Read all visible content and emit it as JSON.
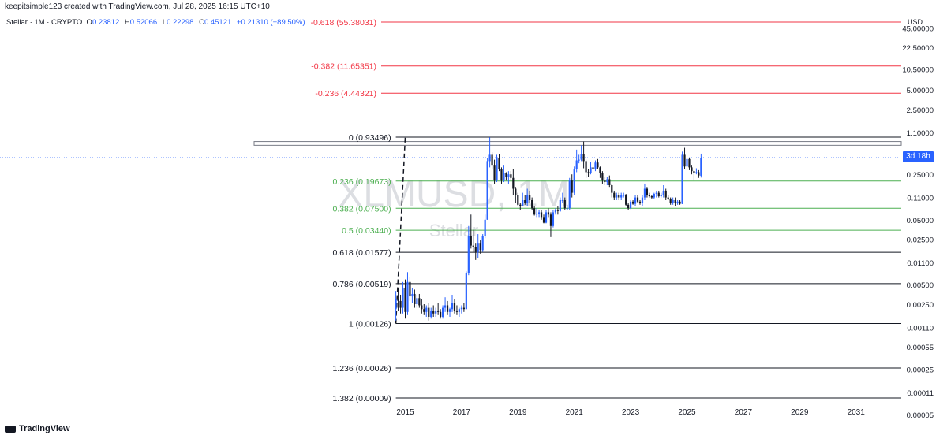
{
  "header": {
    "caption": "keepitsimple123 created with TradingView.com, Jul 28, 2025 16:15 UTC+10",
    "symbol": "Stellar · 1M · CRYPTO",
    "o_label": "O",
    "o_value": "0.23812",
    "h_label": "H",
    "h_value": "0.52066",
    "l_label": "L",
    "l_value": "0.22298",
    "c_label": "C",
    "c_value": "0.45121",
    "change": "+0.21310 (+89.50%)"
  },
  "price_axis": {
    "currency": "USD",
    "countdown": "3d 18h",
    "ticks": [
      "45.00000",
      "22.50000",
      "10.50000",
      "5.00000",
      "2.50000",
      "1.10000",
      "0.50000",
      "0.25000",
      "0.11000",
      "0.05000",
      "0.02500",
      "0.01100",
      "0.00500",
      "0.00250",
      "0.00110",
      "0.00055",
      "0.00025",
      "0.00011",
      "0.00005"
    ]
  },
  "time_axis": {
    "ticks": [
      "2015",
      "2017",
      "2019",
      "2021",
      "2023",
      "2025",
      "2027",
      "2029",
      "2031"
    ]
  },
  "watermark": {
    "symbol": "XLMUSD, 1M",
    "name": "Stellar"
  },
  "branding": {
    "logo_text": "TradingView"
  },
  "colors": {
    "up": "#2962ff",
    "down": "#131722",
    "fib_red": "#f23645",
    "fib_green": "#4caf50",
    "fib_black": "#131722"
  },
  "chart_data": {
    "type": "candlestick",
    "symbol": "XLMUSD",
    "interval": "1M",
    "y_scale": "log",
    "ylim": [
      4e-05,
      80
    ],
    "xlim": [
      "2014-05",
      "2032-01"
    ],
    "fib_levels": [
      {
        "label": "-0.618 (55.38031)",
        "ratio": -0.618,
        "price": 55.38031,
        "color": "red"
      },
      {
        "label": "-0.382 (11.65351)",
        "ratio": -0.382,
        "price": 11.65351,
        "color": "red"
      },
      {
        "label": "-0.236 (4.44321)",
        "ratio": -0.236,
        "price": 4.44321,
        "color": "red"
      },
      {
        "label": "0 (0.93496)",
        "ratio": 0,
        "price": 0.93496,
        "color": "black"
      },
      {
        "label": "0.236 (0.19673)",
        "ratio": 0.236,
        "price": 0.19673,
        "color": "green"
      },
      {
        "label": "0.382 (0.07500)",
        "ratio": 0.382,
        "price": 0.075,
        "color": "green"
      },
      {
        "label": "0.5 (0.03440)",
        "ratio": 0.5,
        "price": 0.0344,
        "color": "green"
      },
      {
        "label": "0.618 (0.01577)",
        "ratio": 0.618,
        "price": 0.01577,
        "color": "black"
      },
      {
        "label": "0.786 (0.00519)",
        "ratio": 0.786,
        "price": 0.00519,
        "color": "black"
      },
      {
        "label": "1 (0.00126)",
        "ratio": 1,
        "price": 0.00126,
        "color": "black"
      },
      {
        "label": "1.236 (0.00026)",
        "ratio": 1.236,
        "price": 0.00026,
        "color": "black"
      },
      {
        "label": "1.382 (0.00009)",
        "ratio": 1.382,
        "price": 9e-05,
        "color": "black"
      }
    ],
    "fib_start_date": "2014-09",
    "fib_anchor": {
      "from": {
        "date": "2014-09",
        "price": 0.00126
      },
      "to": {
        "date": "2015-01",
        "price": 0.93496
      }
    },
    "resistance_band": [
      0.7,
      0.8
    ],
    "current_price_line": 0.45121,
    "candles": [
      [
        "2014-09",
        0.0021,
        0.004,
        0.0014,
        0.003
      ],
      [
        "2014-10",
        0.003,
        0.0045,
        0.002,
        0.0028
      ],
      [
        "2014-11",
        0.0028,
        0.0035,
        0.0018,
        0.0022
      ],
      [
        "2014-12",
        0.0022,
        0.0055,
        0.0018,
        0.0045
      ],
      [
        "2015-01",
        0.0045,
        0.006,
        0.0015,
        0.0019
      ],
      [
        "2015-02",
        0.0019,
        0.0078,
        0.0017,
        0.0055
      ],
      [
        "2015-03",
        0.0055,
        0.0065,
        0.0028,
        0.0033
      ],
      [
        "2015-04",
        0.0033,
        0.0045,
        0.0026,
        0.0036
      ],
      [
        "2015-05",
        0.0036,
        0.0042,
        0.0022,
        0.0025
      ],
      [
        "2015-06",
        0.0025,
        0.0035,
        0.0022,
        0.0031
      ],
      [
        "2015-07",
        0.0031,
        0.0036,
        0.0022,
        0.0024
      ],
      [
        "2015-08",
        0.0024,
        0.003,
        0.0018,
        0.0021
      ],
      [
        "2015-09",
        0.0021,
        0.0025,
        0.0017,
        0.0019
      ],
      [
        "2015-10",
        0.0019,
        0.0024,
        0.0016,
        0.0022
      ],
      [
        "2015-11",
        0.0022,
        0.0026,
        0.0014,
        0.0016
      ],
      [
        "2015-12",
        0.0016,
        0.0022,
        0.0015,
        0.002
      ],
      [
        "2016-01",
        0.002,
        0.0024,
        0.0016,
        0.0018
      ],
      [
        "2016-02",
        0.0018,
        0.0022,
        0.0016,
        0.002
      ],
      [
        "2016-03",
        0.002,
        0.0026,
        0.0017,
        0.0019
      ],
      [
        "2016-04",
        0.0019,
        0.0021,
        0.0015,
        0.0016
      ],
      [
        "2016-05",
        0.0016,
        0.0024,
        0.0015,
        0.0022
      ],
      [
        "2016-06",
        0.0022,
        0.0032,
        0.0019,
        0.0024
      ],
      [
        "2016-07",
        0.0024,
        0.0028,
        0.0017,
        0.0019
      ],
      [
        "2016-08",
        0.0019,
        0.0022,
        0.0016,
        0.0021
      ],
      [
        "2016-09",
        0.0021,
        0.0035,
        0.0019,
        0.0026
      ],
      [
        "2016-10",
        0.0026,
        0.003,
        0.0018,
        0.002
      ],
      [
        "2016-11",
        0.002,
        0.0024,
        0.0017,
        0.0019
      ],
      [
        "2016-12",
        0.0019,
        0.0022,
        0.0016,
        0.0021
      ],
      [
        "2017-01",
        0.0021,
        0.0024,
        0.0018,
        0.0022
      ],
      [
        "2017-02",
        0.0022,
        0.0026,
        0.0019,
        0.0021
      ],
      [
        "2017-03",
        0.0021,
        0.008,
        0.0021,
        0.0075
      ],
      [
        "2017-04",
        0.0075,
        0.04,
        0.007,
        0.028
      ],
      [
        "2017-05",
        0.028,
        0.06,
        0.018,
        0.02
      ],
      [
        "2017-06",
        0.02,
        0.035,
        0.016,
        0.019
      ],
      [
        "2017-07",
        0.019,
        0.022,
        0.012,
        0.016
      ],
      [
        "2017-08",
        0.016,
        0.03,
        0.013,
        0.022
      ],
      [
        "2017-09",
        0.022,
        0.024,
        0.015,
        0.017
      ],
      [
        "2017-10",
        0.017,
        0.03,
        0.016,
        0.028
      ],
      [
        "2017-11",
        0.028,
        0.06,
        0.026,
        0.05
      ],
      [
        "2017-12",
        0.05,
        0.45,
        0.05,
        0.4
      ],
      [
        "2018-01",
        0.4,
        0.93,
        0.32,
        0.5
      ],
      [
        "2018-02",
        0.5,
        0.55,
        0.3,
        0.35
      ],
      [
        "2018-03",
        0.35,
        0.42,
        0.18,
        0.2
      ],
      [
        "2018-04",
        0.2,
        0.5,
        0.19,
        0.45
      ],
      [
        "2018-05",
        0.45,
        0.52,
        0.28,
        0.3
      ],
      [
        "2018-06",
        0.3,
        0.32,
        0.18,
        0.2
      ],
      [
        "2018-07",
        0.2,
        0.35,
        0.19,
        0.26
      ],
      [
        "2018-08",
        0.26,
        0.27,
        0.2,
        0.23
      ],
      [
        "2018-09",
        0.23,
        0.28,
        0.18,
        0.25
      ],
      [
        "2018-10",
        0.25,
        0.28,
        0.2,
        0.22
      ],
      [
        "2018-11",
        0.22,
        0.3,
        0.12,
        0.15
      ],
      [
        "2018-12",
        0.15,
        0.16,
        0.09,
        0.12
      ],
      [
        "2019-01",
        0.12,
        0.13,
        0.08,
        0.085
      ],
      [
        "2019-02",
        0.085,
        0.09,
        0.07,
        0.082
      ],
      [
        "2019-03",
        0.082,
        0.13,
        0.08,
        0.1
      ],
      [
        "2019-04",
        0.1,
        0.12,
        0.085,
        0.09
      ],
      [
        "2019-05",
        0.09,
        0.15,
        0.08,
        0.12
      ],
      [
        "2019-06",
        0.12,
        0.14,
        0.09,
        0.1
      ],
      [
        "2019-07",
        0.1,
        0.11,
        0.07,
        0.075
      ],
      [
        "2019-08",
        0.075,
        0.08,
        0.058,
        0.06
      ],
      [
        "2019-09",
        0.06,
        0.075,
        0.055,
        0.062
      ],
      [
        "2019-10",
        0.062,
        0.07,
        0.055,
        0.065
      ],
      [
        "2019-11",
        0.065,
        0.07,
        0.05,
        0.055
      ],
      [
        "2019-12",
        0.055,
        0.06,
        0.044,
        0.045
      ],
      [
        "2020-01",
        0.045,
        0.07,
        0.044,
        0.065
      ],
      [
        "2020-02",
        0.065,
        0.075,
        0.055,
        0.06
      ],
      [
        "2020-03",
        0.06,
        0.065,
        0.027,
        0.04
      ],
      [
        "2020-04",
        0.04,
        0.07,
        0.038,
        0.065
      ],
      [
        "2020-05",
        0.065,
        0.075,
        0.06,
        0.07
      ],
      [
        "2020-06",
        0.07,
        0.08,
        0.06,
        0.068
      ],
      [
        "2020-07",
        0.068,
        0.11,
        0.066,
        0.1
      ],
      [
        "2020-08",
        0.1,
        0.13,
        0.09,
        0.1
      ],
      [
        "2020-09",
        0.1,
        0.11,
        0.07,
        0.075
      ],
      [
        "2020-10",
        0.075,
        0.085,
        0.07,
        0.075
      ],
      [
        "2020-11",
        0.075,
        0.22,
        0.07,
        0.2
      ],
      [
        "2020-12",
        0.2,
        0.25,
        0.11,
        0.13
      ],
      [
        "2021-01",
        0.13,
        0.33,
        0.12,
        0.3
      ],
      [
        "2021-02",
        0.3,
        0.6,
        0.27,
        0.41
      ],
      [
        "2021-03",
        0.41,
        0.5,
        0.37,
        0.42
      ],
      [
        "2021-04",
        0.42,
        0.7,
        0.4,
        0.51
      ],
      [
        "2021-05",
        0.51,
        0.8,
        0.31,
        0.4
      ],
      [
        "2021-06",
        0.4,
        0.42,
        0.22,
        0.27
      ],
      [
        "2021-07",
        0.27,
        0.3,
        0.23,
        0.26
      ],
      [
        "2021-08",
        0.26,
        0.39,
        0.25,
        0.32
      ],
      [
        "2021-09",
        0.32,
        0.42,
        0.26,
        0.3
      ],
      [
        "2021-10",
        0.3,
        0.41,
        0.28,
        0.38
      ],
      [
        "2021-11",
        0.38,
        0.43,
        0.3,
        0.32
      ],
      [
        "2021-12",
        0.32,
        0.33,
        0.22,
        0.26
      ],
      [
        "2022-01",
        0.26,
        0.28,
        0.18,
        0.2
      ],
      [
        "2022-02",
        0.2,
        0.23,
        0.17,
        0.19
      ],
      [
        "2022-03",
        0.19,
        0.23,
        0.17,
        0.21
      ],
      [
        "2022-04",
        0.21,
        0.24,
        0.16,
        0.17
      ],
      [
        "2022-05",
        0.17,
        0.18,
        0.11,
        0.13
      ],
      [
        "2022-06",
        0.13,
        0.14,
        0.1,
        0.11
      ],
      [
        "2022-07",
        0.11,
        0.13,
        0.1,
        0.12
      ],
      [
        "2022-08",
        0.12,
        0.13,
        0.1,
        0.11
      ],
      [
        "2022-09",
        0.11,
        0.13,
        0.1,
        0.12
      ],
      [
        "2022-10",
        0.12,
        0.13,
        0.11,
        0.12
      ],
      [
        "2022-11",
        0.12,
        0.125,
        0.08,
        0.085
      ],
      [
        "2022-12",
        0.085,
        0.09,
        0.07,
        0.075
      ],
      [
        "2023-01",
        0.075,
        0.1,
        0.073,
        0.095
      ],
      [
        "2023-02",
        0.095,
        0.1,
        0.085,
        0.088
      ],
      [
        "2023-03",
        0.088,
        0.12,
        0.08,
        0.11
      ],
      [
        "2023-04",
        0.11,
        0.12,
        0.09,
        0.095
      ],
      [
        "2023-05",
        0.095,
        0.1,
        0.085,
        0.09
      ],
      [
        "2023-06",
        0.09,
        0.12,
        0.08,
        0.11
      ],
      [
        "2023-07",
        0.11,
        0.18,
        0.1,
        0.15
      ],
      [
        "2023-08",
        0.15,
        0.16,
        0.11,
        0.12
      ],
      [
        "2023-09",
        0.12,
        0.13,
        0.11,
        0.115
      ],
      [
        "2023-10",
        0.115,
        0.12,
        0.105,
        0.11
      ],
      [
        "2023-11",
        0.11,
        0.13,
        0.105,
        0.125
      ],
      [
        "2023-12",
        0.125,
        0.14,
        0.11,
        0.13
      ],
      [
        "2024-01",
        0.13,
        0.14,
        0.11,
        0.115
      ],
      [
        "2024-02",
        0.115,
        0.13,
        0.11,
        0.12
      ],
      [
        "2024-03",
        0.12,
        0.17,
        0.11,
        0.14
      ],
      [
        "2024-04",
        0.14,
        0.15,
        0.1,
        0.11
      ],
      [
        "2024-05",
        0.11,
        0.12,
        0.1,
        0.105
      ],
      [
        "2024-06",
        0.105,
        0.11,
        0.085,
        0.09
      ],
      [
        "2024-07",
        0.09,
        0.11,
        0.085,
        0.1
      ],
      [
        "2024-08",
        0.1,
        0.11,
        0.08,
        0.09
      ],
      [
        "2024-09",
        0.09,
        0.1,
        0.085,
        0.095
      ],
      [
        "2024-10",
        0.095,
        0.1,
        0.085,
        0.088
      ],
      [
        "2024-11",
        0.088,
        0.56,
        0.087,
        0.5
      ],
      [
        "2024-12",
        0.5,
        0.64,
        0.3,
        0.33
      ],
      [
        "2025-01",
        0.33,
        0.51,
        0.32,
        0.43
      ],
      [
        "2025-02",
        0.43,
        0.45,
        0.29,
        0.32
      ],
      [
        "2025-03",
        0.32,
        0.35,
        0.25,
        0.28
      ],
      [
        "2025-04",
        0.28,
        0.29,
        0.2,
        0.26
      ],
      [
        "2025-05",
        0.26,
        0.31,
        0.25,
        0.27
      ],
      [
        "2025-06",
        0.27,
        0.29,
        0.22,
        0.24
      ],
      [
        "2025-07",
        0.23812,
        0.52066,
        0.22298,
        0.45121
      ]
    ]
  }
}
